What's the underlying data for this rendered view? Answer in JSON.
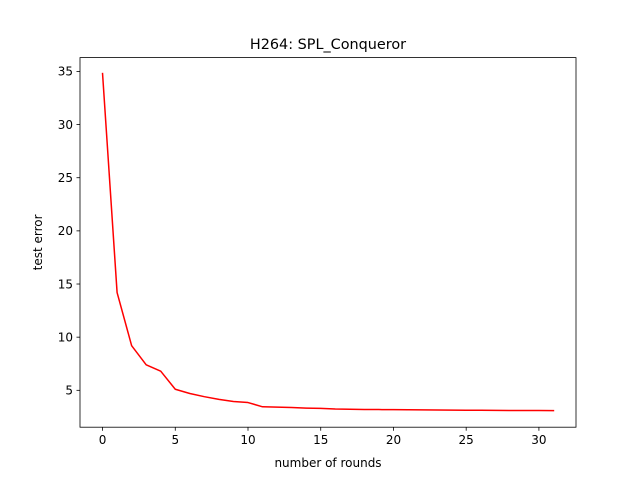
{
  "chart_data": {
    "type": "line",
    "title": "H264: SPL_Conqueror",
    "xlabel": "number of rounds",
    "ylabel": "test error",
    "xlim": [
      -1.55,
      32.55
    ],
    "ylim": [
      1.53,
      36.3
    ],
    "xticks": [
      0,
      5,
      10,
      15,
      20,
      25,
      30
    ],
    "yticks": [
      5,
      10,
      15,
      20,
      25,
      30,
      35
    ],
    "grid": false,
    "series": [
      {
        "color": "#ff0000",
        "x": [
          0,
          1,
          2,
          3,
          4,
          5,
          6,
          7,
          8,
          9,
          10,
          11,
          12,
          13,
          14,
          15,
          16,
          17,
          18,
          19,
          20,
          21,
          22,
          23,
          24,
          25,
          26,
          27,
          28,
          29,
          30,
          31
        ],
        "y": [
          34.8,
          14.2,
          9.2,
          7.4,
          6.8,
          5.1,
          4.7,
          4.4,
          4.15,
          3.95,
          3.85,
          3.45,
          3.42,
          3.38,
          3.33,
          3.3,
          3.24,
          3.22,
          3.2,
          3.19,
          3.18,
          3.17,
          3.16,
          3.15,
          3.14,
          3.13,
          3.12,
          3.11,
          3.1,
          3.1,
          3.1,
          3.09
        ]
      }
    ]
  }
}
